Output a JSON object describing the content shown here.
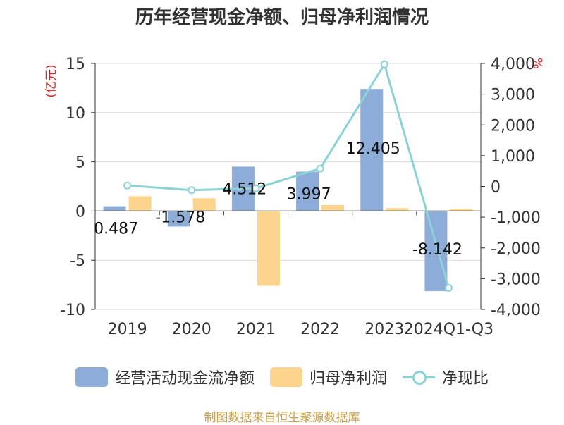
{
  "title": "历年经营现金净额、归母净利润情况",
  "source": "制图数据来自恒生聚源数据库",
  "colors": {
    "cashflow": "#8eacd8",
    "netprofit": "#fdd48e",
    "ratio": "#8bd3d6",
    "left_axis_unit": "#e02020",
    "right_axis_unit": "#e02020",
    "source_text": "#c9a24b"
  },
  "chart_data": {
    "type": "bar",
    "categories": [
      "2019",
      "2020",
      "2021",
      "2022",
      "2023",
      "2024Q1-Q3"
    ],
    "series": [
      {
        "name": "经营活动现金流净额",
        "type": "bar",
        "axis": "left",
        "values": [
          0.487,
          -1.578,
          4.512,
          3.997,
          12.405,
          -8.142
        ],
        "labels": [
          "0.487",
          "-1.578",
          "4.512",
          "3.997",
          "12.405",
          "-8.142"
        ]
      },
      {
        "name": "归母净利润",
        "type": "bar",
        "axis": "left",
        "values": [
          1.5,
          1.3,
          -7.6,
          0.6,
          0.3,
          0.25
        ]
      },
      {
        "name": "净现比",
        "type": "line",
        "axis": "right",
        "values": [
          30,
          -120,
          -60,
          580,
          3970,
          -3300
        ]
      }
    ],
    "left_axis": {
      "unit": "(亿元)",
      "ylim": [
        -10,
        15
      ],
      "ticks": [
        "-10",
        "-5",
        "0",
        "5",
        "10",
        "15"
      ]
    },
    "right_axis": {
      "unit": "%",
      "ylim": [
        -4000,
        4000
      ],
      "ticks": [
        "-4,000",
        "-3,000",
        "-2,000",
        "-1,000",
        "0",
        "1,000",
        "2,000",
        "3,000",
        "4,000"
      ]
    },
    "grid": true,
    "legend_position": "bottom"
  }
}
